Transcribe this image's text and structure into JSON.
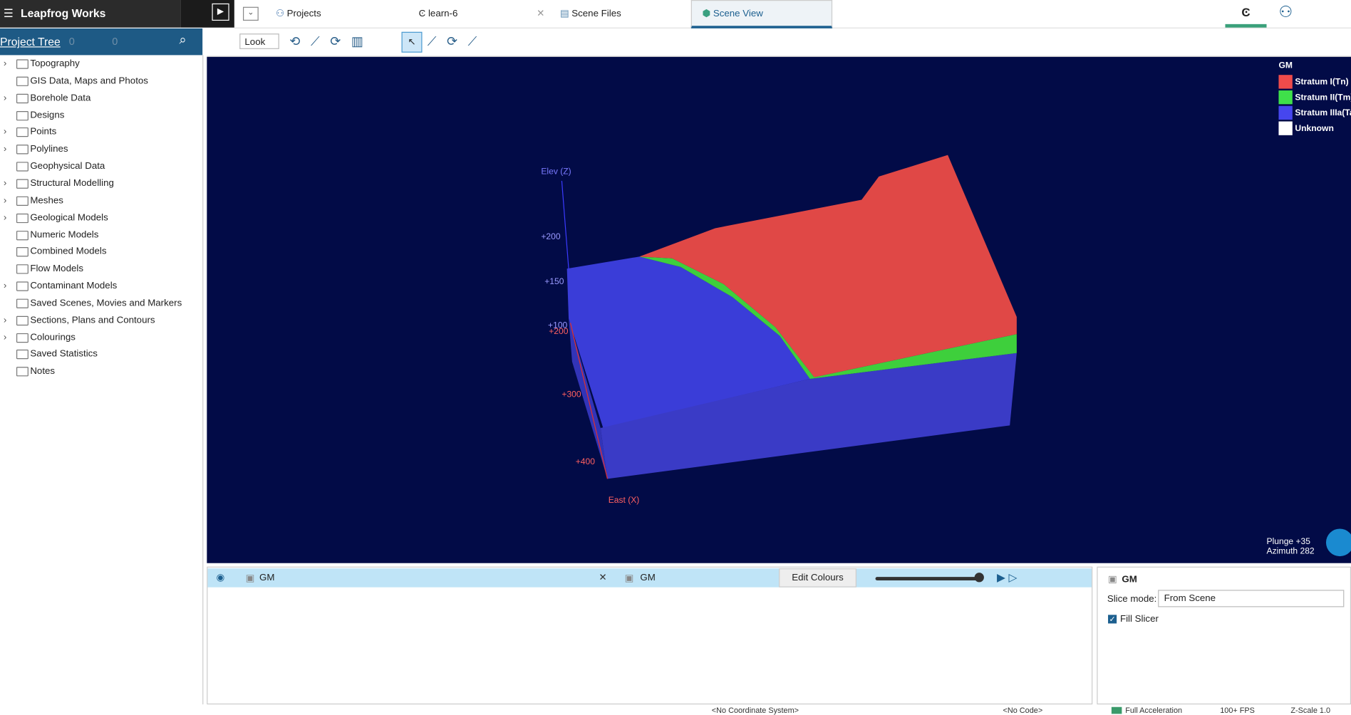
{
  "app": {
    "title": "Leapfrog Works"
  },
  "tabs": [
    "Projects",
    "learn-6",
    "Scene Files",
    "Scene View"
  ],
  "project_tree": {
    "title": "Project Tree",
    "counts": [
      "0",
      "0"
    ],
    "items": [
      {
        "label": "Topography",
        "expandable": true
      },
      {
        "label": "GIS Data, Maps and Photos",
        "expandable": false
      },
      {
        "label": "Borehole Data",
        "expandable": true
      },
      {
        "label": "Designs",
        "expandable": false
      },
      {
        "label": "Points",
        "expandable": true
      },
      {
        "label": "Polylines",
        "expandable": true
      },
      {
        "label": "Geophysical Data",
        "expandable": false
      },
      {
        "label": "Structural Modelling",
        "expandable": true
      },
      {
        "label": "Meshes",
        "expandable": true
      },
      {
        "label": "Geological Models",
        "expandable": true
      },
      {
        "label": "Numeric Models",
        "expandable": false
      },
      {
        "label": "Combined Models",
        "expandable": false
      },
      {
        "label": "Flow Models",
        "expandable": false
      },
      {
        "label": "Contaminant Models",
        "expandable": true
      },
      {
        "label": "Saved Scenes, Movies and Markers",
        "expandable": false
      },
      {
        "label": "Sections, Plans and Contours",
        "expandable": true
      },
      {
        "label": "Colourings",
        "expandable": true
      },
      {
        "label": "Saved Statistics",
        "expandable": false
      },
      {
        "label": "Notes",
        "expandable": false
      }
    ]
  },
  "toolbar": {
    "view_mode": "Look"
  },
  "legend": {
    "title": "GM",
    "items": [
      {
        "label": "Stratum I(Tn)",
        "color": "#ee4b4b"
      },
      {
        "label": "Stratum II(Tm)",
        "color": "#3fe04a"
      },
      {
        "label": "Stratum IIIa(Ta",
        "color": "#4646ee"
      },
      {
        "label": "Unknown",
        "color": "#ffffff"
      }
    ]
  },
  "axes": {
    "z_label": "Elev (Z)",
    "z_ticks": [
      "+200",
      "+150",
      "+100"
    ],
    "x_label": "East (X)",
    "x_ticks": [
      "+200",
      "+300",
      "+400"
    ]
  },
  "orientation": {
    "plunge": "Plunge +35",
    "azimuth": "Azimuth 282"
  },
  "shape_list": {
    "item": "GM",
    "selector": "GM",
    "button": "Edit Colours"
  },
  "properties": {
    "title": "GM",
    "slice_mode_label": "Slice mode:",
    "slice_mode": "From Scene",
    "fill_slicer": "Fill Slicer"
  },
  "status": [
    "<No Coordinate System>",
    "<No Code>",
    "Full Acceleration",
    "100+ FPS",
    "Z-Scale 1.0"
  ]
}
